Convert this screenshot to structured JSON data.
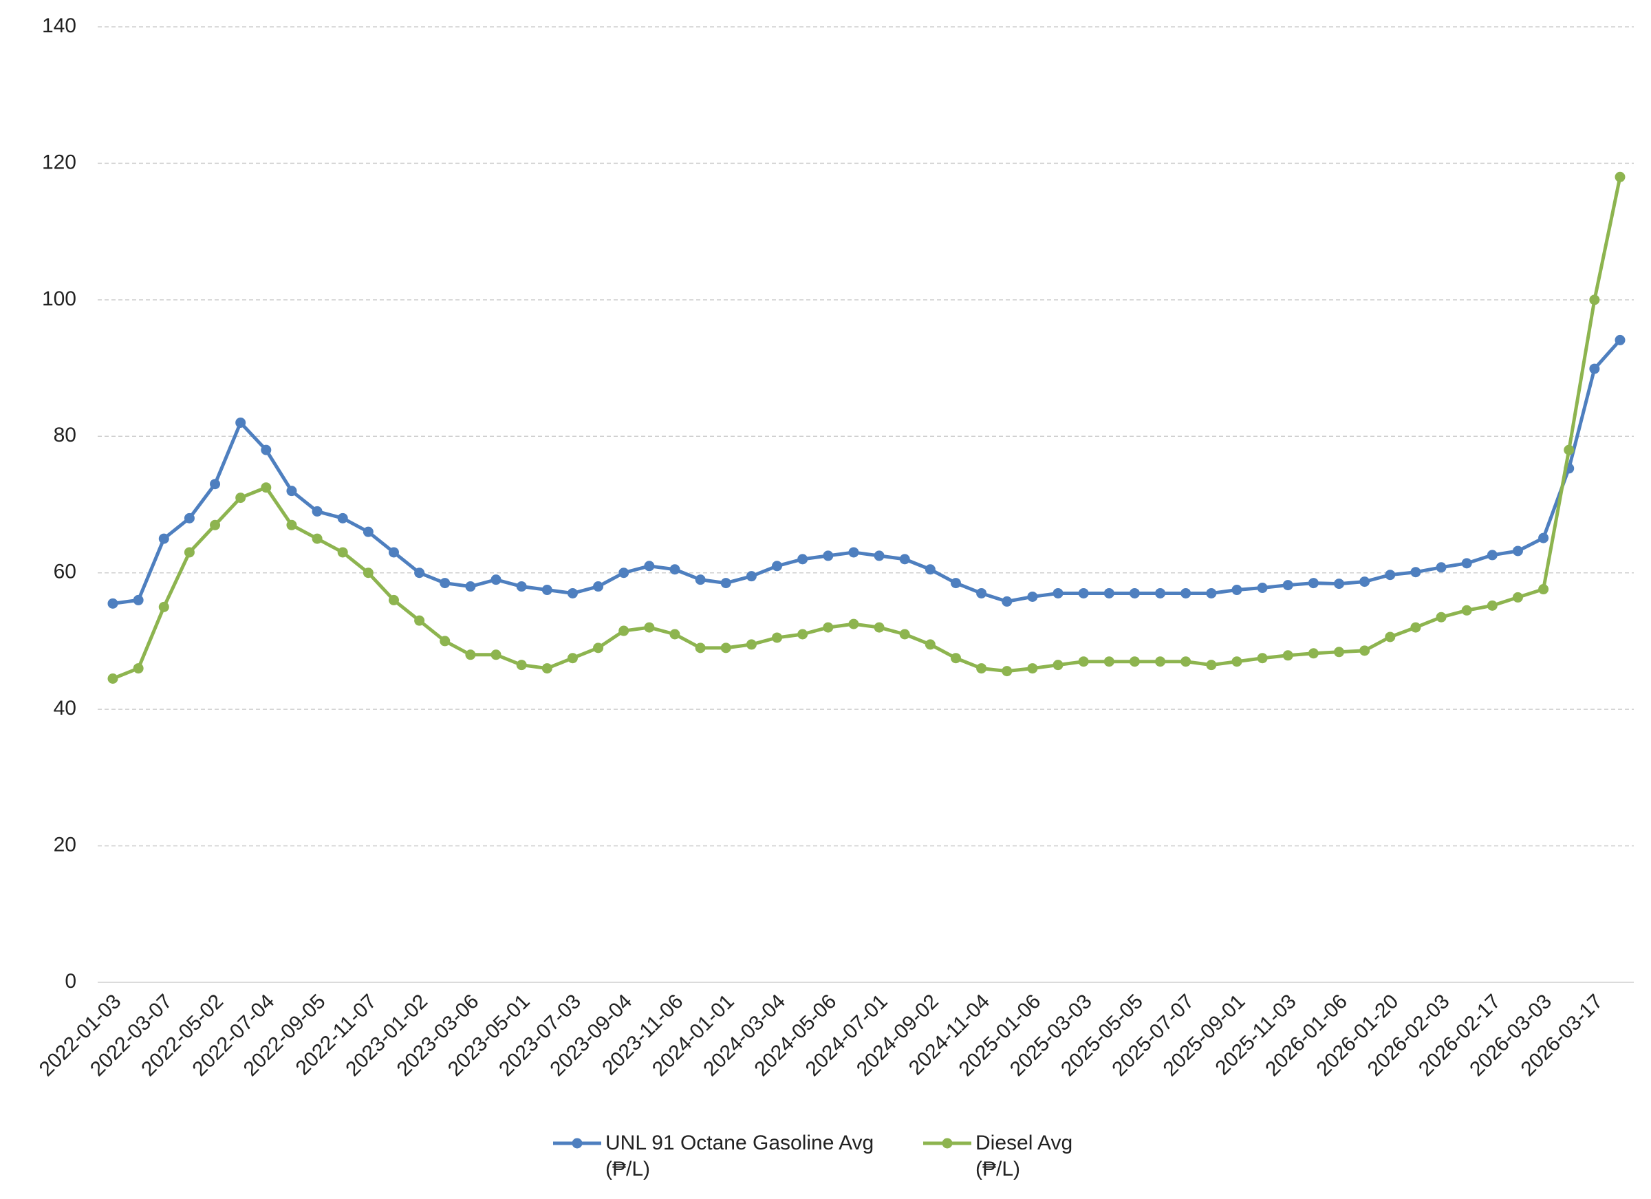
{
  "chart_data": {
    "type": "line",
    "categories": [
      "2022-01-03",
      null,
      "2022-03-07",
      null,
      "2022-05-02",
      null,
      "2022-07-04",
      null,
      "2022-09-05",
      null,
      "2022-11-07",
      null,
      "2023-01-02",
      null,
      "2023-03-06",
      null,
      "2023-05-01",
      null,
      "2023-07-03",
      null,
      "2023-09-04",
      null,
      "2023-11-06",
      null,
      "2024-01-01",
      null,
      "2024-03-04",
      null,
      "2024-05-06",
      null,
      "2024-07-01",
      null,
      "2024-09-02",
      null,
      "2024-11-04",
      null,
      "2025-01-06",
      null,
      "2025-03-03",
      null,
      "2025-05-05",
      null,
      "2025-07-07",
      null,
      "2025-09-01",
      null,
      "2025-11-03",
      null,
      "2026-01-06",
      null,
      "2026-01-20",
      null,
      "2026-02-03",
      null,
      "2026-02-17",
      null,
      "2026-03-03",
      null,
      "2026-03-17",
      null
    ],
    "series": [
      {
        "name": "UNL 91 Octane Gasoline Avg (₱/L)",
        "color": "#4e7fbf",
        "values": [
          55.5,
          56,
          65,
          68,
          73,
          82,
          78,
          72,
          69,
          68,
          66,
          63,
          60,
          58.5,
          58,
          59,
          58,
          57.5,
          57,
          58,
          60,
          61,
          60.5,
          59,
          58.5,
          59.5,
          61,
          62,
          62.5,
          63,
          62.5,
          62,
          60.5,
          58.5,
          57,
          55.8,
          56.5,
          57,
          57,
          57,
          57,
          57,
          57,
          57,
          57.5,
          57.8,
          58.2,
          58.5,
          58.4,
          58.7,
          59.7,
          60.1,
          60.8,
          61.4,
          62.6,
          63.2,
          65.1,
          75.3,
          89.9,
          94.1
        ]
      },
      {
        "name": "Diesel Avg (₱/L)",
        "color": "#8db44f",
        "values": [
          44.5,
          46,
          55,
          63,
          67,
          71,
          72.5,
          67,
          65,
          63,
          60,
          56,
          53,
          50,
          48,
          48,
          46.5,
          46,
          47.5,
          49,
          51.5,
          52,
          51,
          49,
          49,
          49.5,
          50.5,
          51,
          52,
          52.5,
          52,
          51,
          49.5,
          47.5,
          46,
          45.6,
          46,
          46.5,
          47,
          47,
          47,
          47,
          47,
          46.5,
          47,
          47.5,
          47.9,
          48.2,
          48.4,
          48.6,
          50.6,
          52,
          53.5,
          54.5,
          55.2,
          56.4,
          57.6,
          78,
          100,
          118
        ]
      }
    ],
    "ylim": [
      0,
      140
    ],
    "yticks": [
      0,
      20,
      40,
      60,
      80,
      100,
      120,
      140
    ],
    "grid": true
  }
}
